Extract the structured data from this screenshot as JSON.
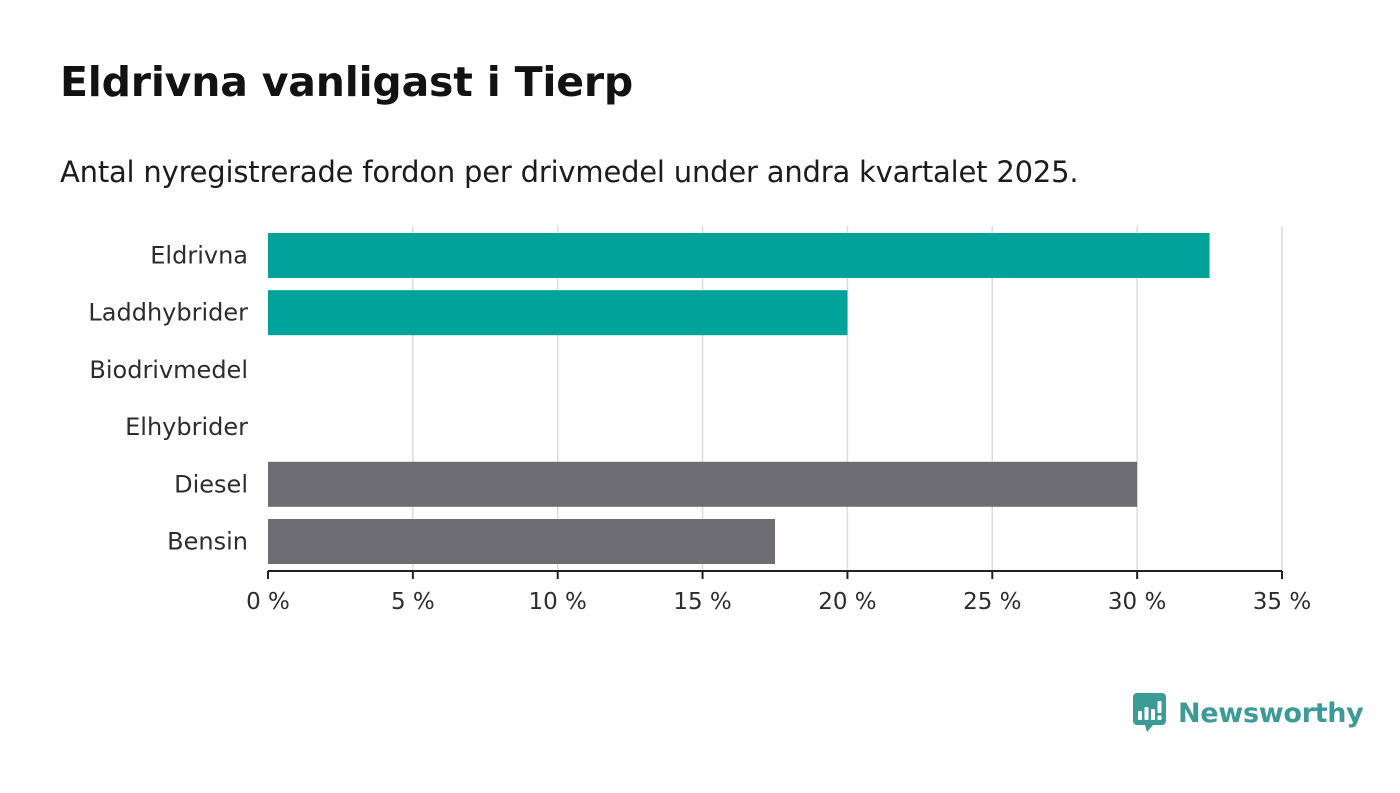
{
  "title": "Eldrivna vanligast i Tierp",
  "subtitle": "Antal nyregistrerade fordon per drivmedel under andra kvartalet 2025.",
  "brand": {
    "name": "Newsworthy",
    "color": "#3d9b97",
    "icon": "bar-chart-speech-bubble-icon"
  },
  "chart_data": {
    "type": "bar",
    "orientation": "horizontal",
    "categories": [
      "Eldrivna",
      "Laddhybrider",
      "Biodrivmedel",
      "Elhybrider",
      "Diesel",
      "Bensin"
    ],
    "values": [
      32.5,
      20,
      0,
      0,
      30,
      17.5
    ],
    "colors": [
      "#00a39a",
      "#00a39a",
      "#00a39a",
      "#00a39a",
      "#6e6d74",
      "#6e6d74"
    ],
    "xlim": [
      0,
      35
    ],
    "ticks": [
      0,
      5,
      10,
      15,
      20,
      25,
      30,
      35
    ],
    "tick_labels": [
      "0 %",
      "5 %",
      "10 %",
      "15 %",
      "20 %",
      "25 %",
      "30 %",
      "35 %"
    ],
    "unit": "%",
    "grid": "vertical",
    "xlabel": "",
    "ylabel": ""
  }
}
